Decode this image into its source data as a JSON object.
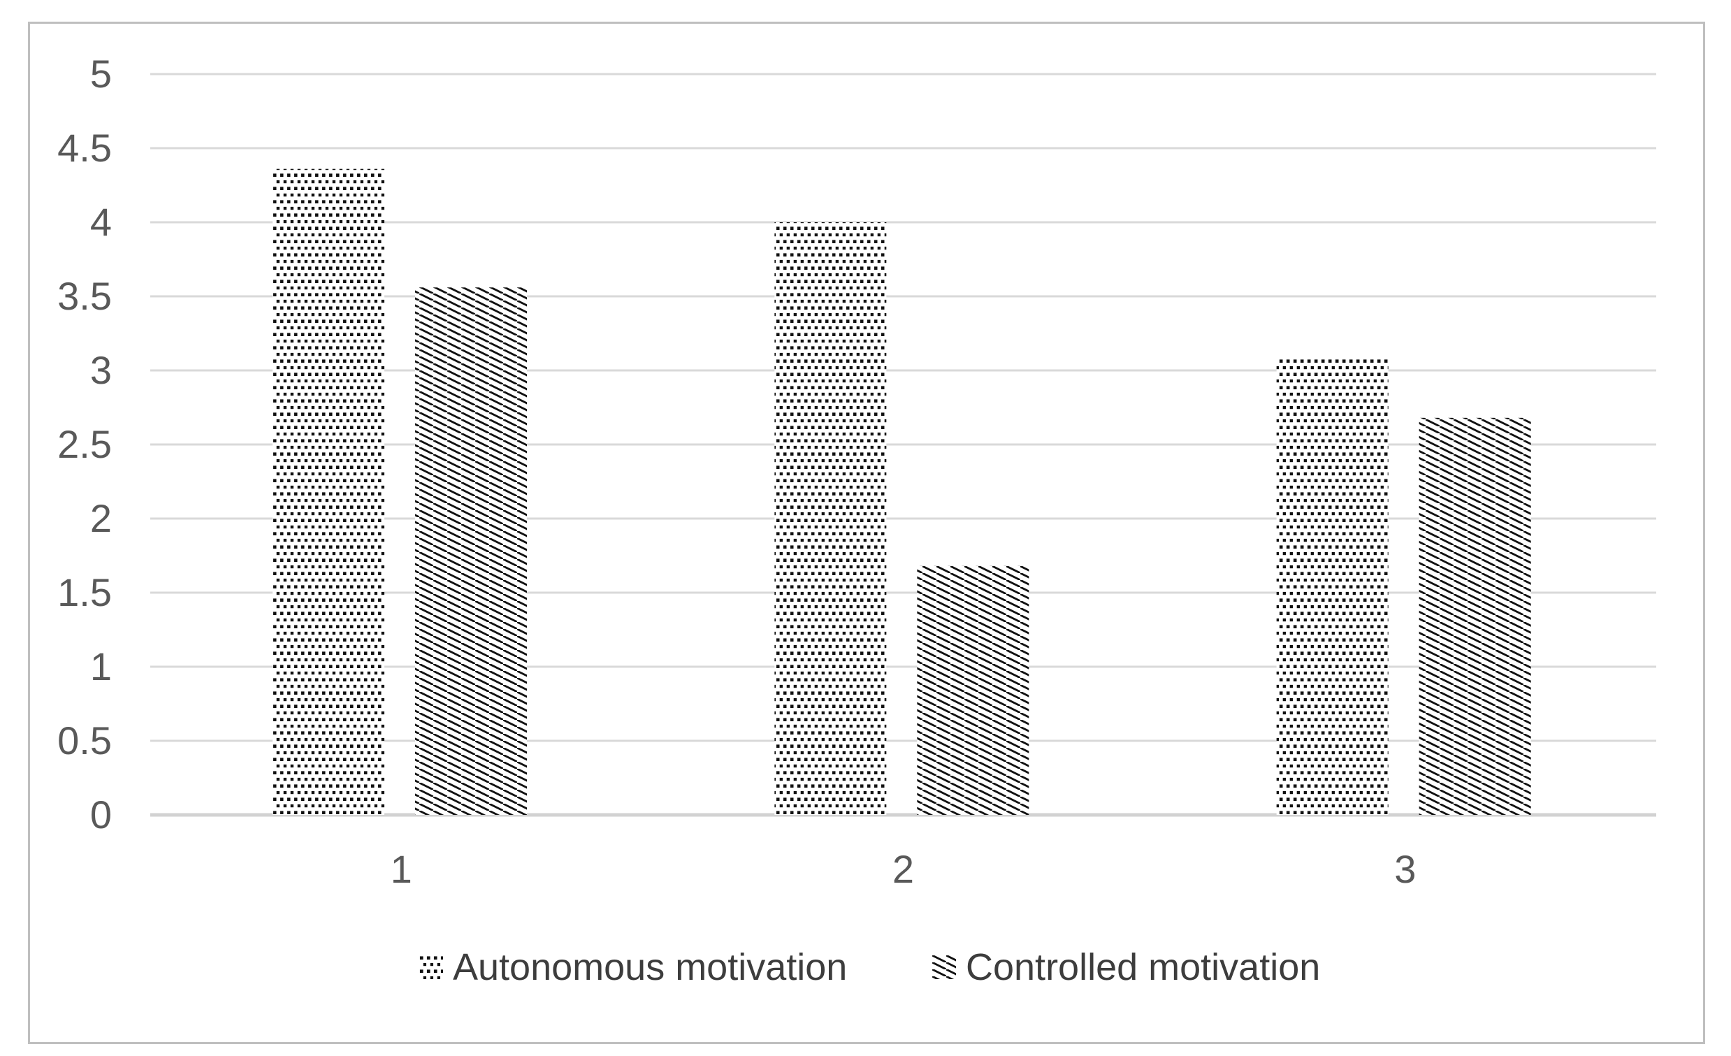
{
  "chart_data": {
    "type": "bar",
    "title": "",
    "xlabel": "",
    "ylabel": "",
    "categories": [
      "1",
      "2",
      "3"
    ],
    "series": [
      {
        "name": "Autonomous motivation",
        "pattern": "dotted",
        "values": [
          4.36,
          4.0,
          3.09
        ]
      },
      {
        "name": "Controlled motivation",
        "pattern": "diagonal-hatch",
        "values": [
          3.56,
          1.68,
          2.68
        ]
      }
    ],
    "ylim": [
      0,
      5
    ],
    "ytick_step": 0.5,
    "yticks": [
      "5",
      "4.5",
      "4",
      "3.5",
      "3",
      "2.5",
      "2",
      "1.5",
      "1",
      "0.5",
      "0"
    ],
    "grid": "horizontal",
    "legend_position": "bottom",
    "colors": {
      "pattern_ink": "#111111",
      "bar_background": "#ffffff",
      "gridline": "#d9d9d9",
      "axis_line": "#d2d2d2",
      "axis_text": "#595959",
      "legend_text": "#3d3d3d",
      "frame_border": "#bfbfbf"
    }
  }
}
